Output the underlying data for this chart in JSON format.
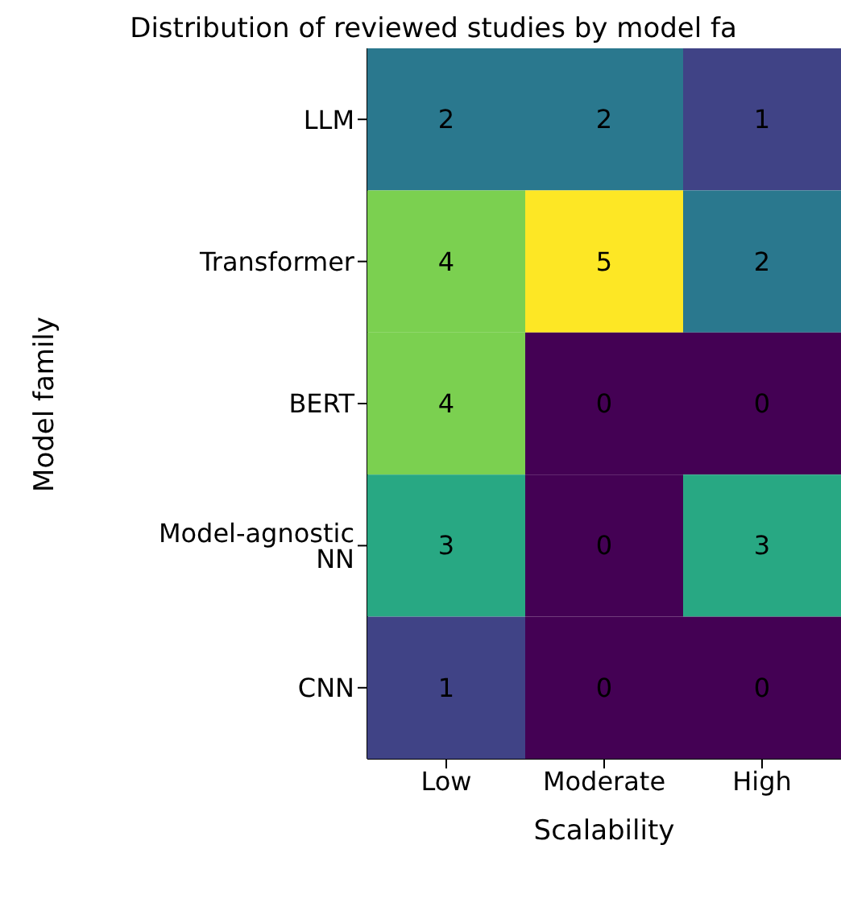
{
  "chart_data": {
    "type": "heatmap",
    "title": "Distribution of reviewed studies by model fa",
    "xlabel": "Scalability",
    "ylabel": "Model family",
    "categories": [
      "Low",
      "Moderate",
      "High"
    ],
    "y_categories": [
      "LLM",
      "Transformer",
      "BERT",
      "Model-agnostic NN",
      "CNN"
    ],
    "cells": [
      [
        2,
        2,
        1
      ],
      [
        4,
        5,
        2
      ],
      [
        4,
        0,
        0
      ],
      [
        3,
        0,
        3
      ],
      [
        1,
        0,
        0
      ]
    ],
    "data_labels": true
  }
}
